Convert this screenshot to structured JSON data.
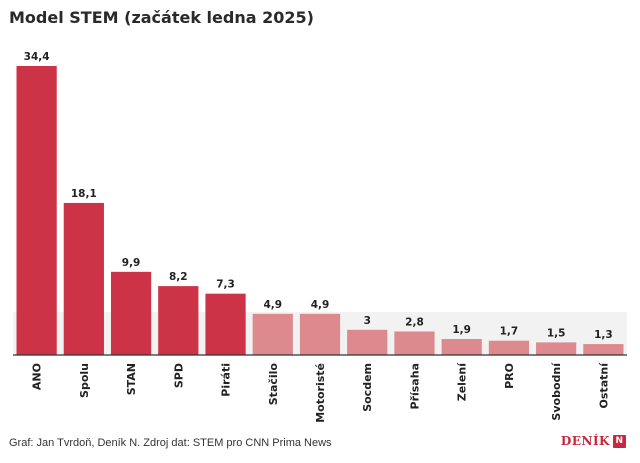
{
  "title": "Model STEM (začátek ledna 2025)",
  "footer": "Graf: Jan Tvrdoň, Deník N. Zdroj dat: STEM pro CNN Prima News",
  "brand": {
    "name": "DENÍK",
    "mark": "N"
  },
  "colors": {
    "strong": "#cc3347",
    "light": "#dd8a8e",
    "band": "#f2f2f2",
    "axis": "#333333"
  },
  "chart_data": {
    "type": "bar",
    "title": "Model STEM (začátek ledna 2025)",
    "categories": [
      "ANO",
      "Spolu",
      "STAN",
      "SPD",
      "Piráti",
      "Stačilo",
      "Motoristé",
      "Socdem",
      "Přísaha",
      "Zelení",
      "PRO",
      "Svobodní",
      "Ostatní"
    ],
    "values": [
      34.4,
      18.1,
      9.9,
      8.2,
      7.3,
      4.9,
      4.9,
      3,
      2.8,
      1.9,
      1.7,
      1.5,
      1.3
    ],
    "value_labels": [
      "34,4",
      "18,1",
      "9,9",
      "8,2",
      "7,3",
      "4,9",
      "4,9",
      "3",
      "2,8",
      "1,9",
      "1,7",
      "1,5",
      "1,3"
    ],
    "highlight": [
      "strong",
      "strong",
      "strong",
      "strong",
      "strong",
      "light",
      "light",
      "light",
      "light",
      "light",
      "light",
      "light",
      "light"
    ],
    "threshold": 5,
    "ylim": [
      0,
      34.4
    ],
    "grid": false,
    "legend": "none"
  }
}
